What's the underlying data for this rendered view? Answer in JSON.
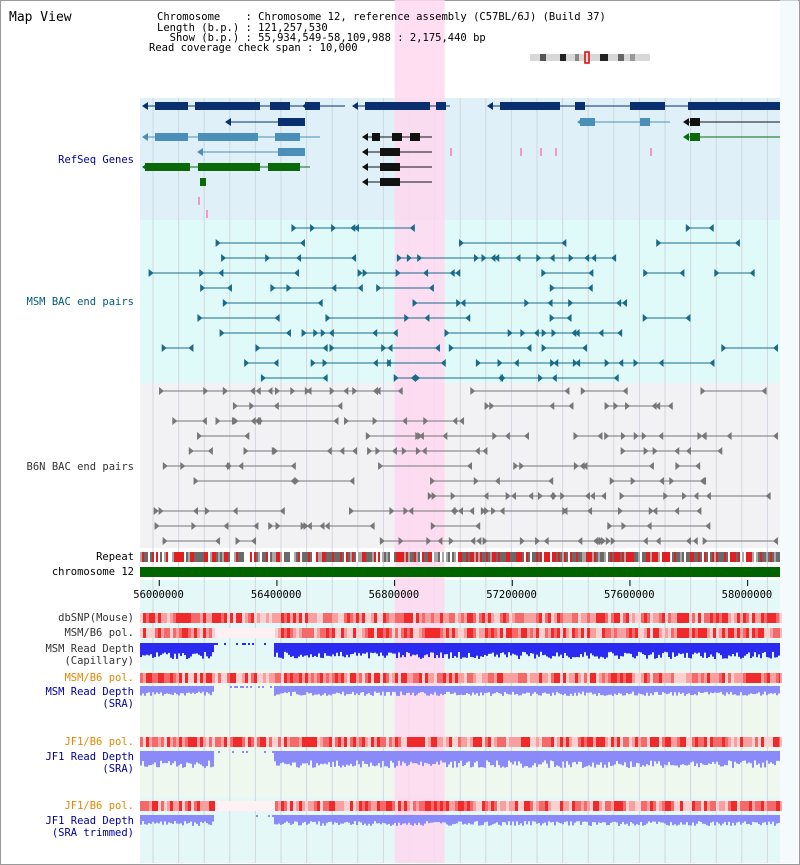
{
  "title": "Map View",
  "info": {
    "chromosome_line": "Chromosome    : Chromosome 12, reference assembly (C57BL/6J) (Build 37)",
    "length_line": "Length (b.p.) : 121,257,530",
    "show_line": "  Show (b.p.) : 55,934,549-58,109,988 : 2,175,440 bp",
    "coverage_line": "Read coverage check span : 10,000"
  },
  "tracks": {
    "refseq": "RefSeq Genes",
    "msm_bac": "MSM BAC end pairs",
    "b6n_bac": "B6N BAC end pairs",
    "repeat": "Repeat",
    "chromosome": "chromosome 12",
    "dbsnp": "dbSNP(Mouse)",
    "msm_b6_pol_1": "MSM/B6 pol.",
    "msm_read_depth_cap_1": "MSM Read Depth",
    "msm_read_depth_cap_2": "(Capillary)",
    "msm_b6_pol_2": "MSM/B6 pol.",
    "msm_read_depth_sra_1": "MSM Read Depth",
    "msm_read_depth_sra_2": "(SRA)",
    "jf1_b6_pol_1": "JF1/B6 pol.",
    "jf1_read_depth_sra_1": "JF1 Read Depth",
    "jf1_read_depth_sra_2": "(SRA)",
    "jf1_b6_pol_2": "JF1/B6 pol.",
    "jf1_read_depth_trim_1": "JF1 Read Depth",
    "jf1_read_depth_trim_2": "(SRA trimmed)"
  },
  "axis": {
    "ticks": [
      "56000000",
      "56400000",
      "56800000",
      "57200000",
      "57600000",
      "58000000"
    ],
    "tick_values": [
      56000000,
      56400000,
      56800000,
      57200000,
      57600000,
      58000000
    ],
    "range": [
      55934549,
      58109988
    ]
  },
  "highlight_range": [
    56800000,
    56970000
  ],
  "colors": {
    "refseq_dark": "#0a2f6e",
    "refseq_mid": "#4a8fb8",
    "refseq_green": "#0a6a0a",
    "msm_line": "#1a6a8a",
    "b6n_line": "#777777",
    "chromosome": "#006400",
    "highlight": "#ffd8f0",
    "depth_dark": "#2a2af0",
    "depth_light": "#8a8af8",
    "pol_red": "#f03a3a",
    "pol_pink": "#f8b8b8"
  }
}
